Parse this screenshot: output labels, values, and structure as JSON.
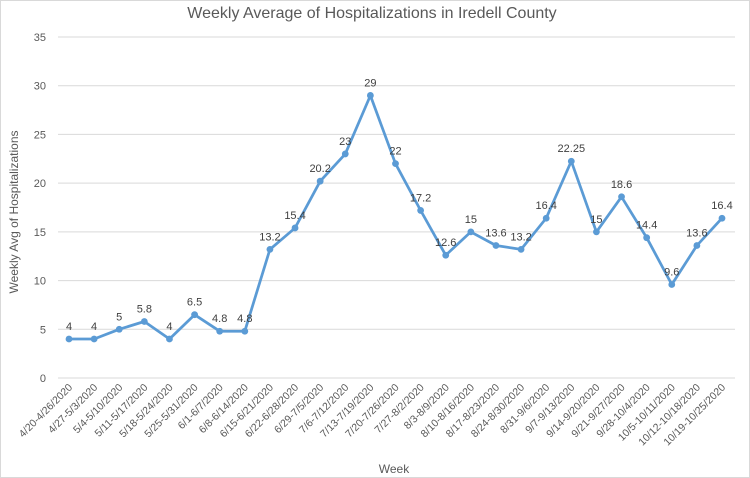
{
  "chart_data": {
    "type": "line",
    "title": "Weekly Average of Hospitalizations in Iredell County",
    "xlabel": "Week",
    "ylabel": "Weekly Avg of Hospitalizations",
    "ylim": [
      0,
      35
    ],
    "yticks": [
      0,
      5,
      10,
      15,
      20,
      25,
      30,
      35
    ],
    "grid": true,
    "legend": "none",
    "line_color": "#5b9bd5",
    "categories": [
      "4/20-4/26/2020",
      "4/27-5/3/2020",
      "5/4-5/10/2020",
      "5/11-5/17/2020",
      "5/18-5/24/2020",
      "5/25-5/31/2020",
      "6/1-6/7/2020",
      "6/8-6/14/2020",
      "6/15-6/21/2020",
      "6/22-6/28/2020",
      "6/29-7/5/2020",
      "7/6-7/12/2020",
      "7/13-7/19/2020",
      "7/20-7/26/2020",
      "7/27-8/2/2020",
      "8/3-8/9/2020",
      "8/10-8/16/2020",
      "8/17-8/23/2020",
      "8/24-8/30/2020",
      "8/31-9/6/2020",
      "9/7-9/13/2020",
      "9/14-9/20/2020",
      "9/21-9/27/2020",
      "9/28-10/4/2020",
      "10/5-10/11/2020",
      "10/12-10/18/2020",
      "10/19-10/25/2020"
    ],
    "values": [
      4,
      4,
      5,
      5.8,
      4,
      6.5,
      4.8,
      4.8,
      13.2,
      15.4,
      20.2,
      23,
      29,
      22,
      17.2,
      12.6,
      15,
      13.6,
      13.2,
      16.4,
      22.25,
      15,
      18.6,
      14.4,
      9.6,
      13.6,
      16.4
    ],
    "data_labels": [
      "4",
      "4",
      "5",
      "5.8",
      "4",
      "6.5",
      "4.8",
      "4.8",
      "13.2",
      "15.4",
      "20.2",
      "23",
      "29",
      "22",
      "17.2",
      "12.6",
      "15",
      "13.6",
      "13.2",
      "16.4",
      "22.25",
      "15",
      "18.6",
      "14.4",
      "9.6",
      "13.6",
      "16.4"
    ]
  }
}
